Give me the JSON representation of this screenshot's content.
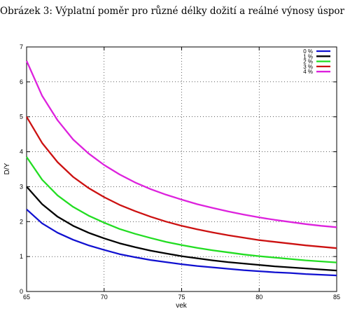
{
  "caption": "Obrázek 3: Výplatní poměr pro různé délky dožití a reálné výnosy úspor",
  "chart_data": {
    "type": "line",
    "xlabel": "vek",
    "ylabel": "D/Y",
    "xlim": [
      65,
      85
    ],
    "ylim": [
      0,
      7
    ],
    "x_ticks": [
      65,
      70,
      75,
      80,
      85
    ],
    "y_ticks": [
      0,
      1,
      2,
      3,
      4,
      5,
      6,
      7
    ],
    "grid": true,
    "legend_position": "top-right",
    "x": [
      65,
      66,
      67,
      68,
      69,
      70,
      71,
      72,
      73,
      74,
      75,
      76,
      77,
      78,
      79,
      80,
      81,
      82,
      83,
      84,
      85
    ],
    "series": [
      {
        "name": "0 %",
        "color": "#1010d0",
        "values": [
          2.35,
          1.95,
          1.68,
          1.48,
          1.32,
          1.19,
          1.07,
          0.98,
          0.9,
          0.84,
          0.78,
          0.73,
          0.69,
          0.65,
          0.61,
          0.58,
          0.55,
          0.53,
          0.5,
          0.48,
          0.46
        ]
      },
      {
        "name": "1 %",
        "color": "#000000",
        "values": [
          3.0,
          2.5,
          2.14,
          1.88,
          1.68,
          1.52,
          1.38,
          1.27,
          1.17,
          1.09,
          1.01,
          0.95,
          0.89,
          0.84,
          0.8,
          0.76,
          0.72,
          0.69,
          0.66,
          0.63,
          0.6
        ]
      },
      {
        "name": "2 %",
        "color": "#22dd22",
        "values": [
          3.85,
          3.2,
          2.75,
          2.42,
          2.17,
          1.97,
          1.79,
          1.65,
          1.53,
          1.42,
          1.33,
          1.25,
          1.18,
          1.12,
          1.06,
          1.01,
          0.97,
          0.93,
          0.89,
          0.86,
          0.83
        ]
      },
      {
        "name": "3 %",
        "color": "#cc1111",
        "values": [
          5.0,
          4.25,
          3.7,
          3.28,
          2.96,
          2.7,
          2.48,
          2.3,
          2.14,
          2.0,
          1.88,
          1.78,
          1.69,
          1.61,
          1.54,
          1.47,
          1.42,
          1.37,
          1.32,
          1.28,
          1.24
        ]
      },
      {
        "name": "4 %",
        "color": "#dd22dd",
        "values": [
          6.6,
          5.6,
          4.9,
          4.35,
          3.95,
          3.62,
          3.35,
          3.12,
          2.93,
          2.77,
          2.63,
          2.5,
          2.39,
          2.29,
          2.2,
          2.12,
          2.05,
          1.99,
          1.93,
          1.88,
          1.84
        ]
      }
    ]
  }
}
